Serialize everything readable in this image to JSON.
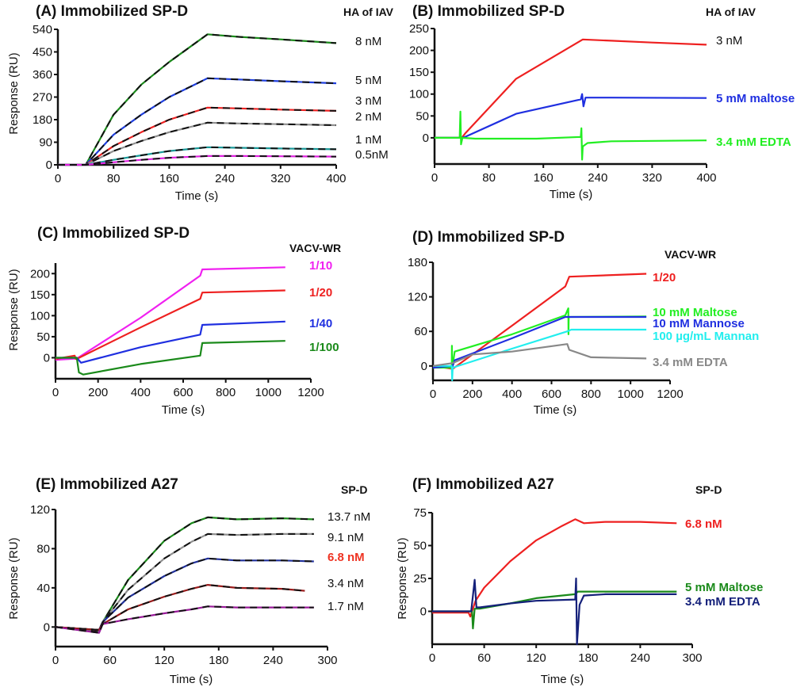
{
  "chart_data": [
    {
      "type": "line",
      "panel": "A",
      "title": "(A) Immobilized SP-D",
      "group_label": "HA of IAV",
      "xlabel": "Time (s)",
      "ylabel": "Response (RU)",
      "xlim": [
        0,
        400
      ],
      "ylim": [
        0,
        540
      ],
      "xticks": [
        0,
        80,
        160,
        240,
        320,
        400
      ],
      "yticks": [
        0,
        90,
        180,
        270,
        360,
        450,
        540
      ],
      "fit_dashed": true,
      "series": [
        {
          "name": "8 nM",
          "color": "#1a8a1a",
          "bold": false,
          "label_color": "#111111",
          "x": [
            0,
            40,
            80,
            120,
            160,
            215,
            260,
            320,
            400
          ],
          "y": [
            0,
            0,
            200,
            320,
            410,
            520,
            510,
            500,
            485
          ]
        },
        {
          "name": "5 nM",
          "color": "#1f3fe0",
          "bold": false,
          "label_color": "#111111",
          "x": [
            0,
            40,
            80,
            120,
            160,
            215,
            260,
            320,
            400
          ],
          "y": [
            0,
            0,
            120,
            200,
            270,
            345,
            340,
            333,
            325
          ]
        },
        {
          "name": "3 nM",
          "color": "#ee2020",
          "bold": false,
          "label_color": "#111111",
          "x": [
            0,
            40,
            80,
            120,
            160,
            215,
            260,
            320,
            400
          ],
          "y": [
            0,
            0,
            75,
            130,
            180,
            228,
            225,
            220,
            215
          ]
        },
        {
          "name": "2 nM",
          "color": "#909090",
          "bold": false,
          "label_color": "#111111",
          "x": [
            0,
            40,
            80,
            120,
            160,
            215,
            260,
            320,
            400
          ],
          "y": [
            0,
            0,
            55,
            95,
            130,
            168,
            165,
            162,
            158
          ]
        },
        {
          "name": "1 nM",
          "color": "#1a9a9a",
          "bold": false,
          "label_color": "#111111",
          "x": [
            0,
            40,
            80,
            120,
            160,
            215,
            260,
            320,
            400
          ],
          "y": [
            0,
            0,
            20,
            38,
            55,
            70,
            68,
            65,
            62
          ]
        },
        {
          "name": "0.5nM",
          "color": "#e020e0",
          "bold": false,
          "label_color": "#111111",
          "x": [
            0,
            40,
            80,
            120,
            160,
            215,
            260,
            320,
            400
          ],
          "y": [
            0,
            0,
            10,
            20,
            28,
            35,
            35,
            34,
            33
          ]
        }
      ]
    },
    {
      "type": "line",
      "panel": "B",
      "title": "(B) Immobilized SP-D",
      "group_label": "HA of IAV",
      "xlabel": "Time (s)",
      "ylabel": "",
      "xlim": [
        0,
        400
      ],
      "ylim": [
        -60,
        250
      ],
      "xticks": [
        0,
        80,
        160,
        240,
        320,
        400
      ],
      "yticks": [
        0,
        50,
        100,
        150,
        200,
        250
      ],
      "fit_dashed": false,
      "series": [
        {
          "name": "3 nM",
          "color": "#ee2020",
          "bold": false,
          "label_color": "#111111",
          "x": [
            0,
            40,
            45,
            120,
            218,
            260,
            320,
            400
          ],
          "y": [
            0,
            0,
            10,
            135,
            225,
            222,
            218,
            213
          ]
        },
        {
          "name": "5 mM maltose",
          "color": "#1f2fe0",
          "bold": true,
          "label_color": "#1f2fe0",
          "x": [
            0,
            40,
            45,
            120,
            215,
            217,
            219,
            222,
            260,
            400
          ],
          "y": [
            0,
            0,
            2,
            55,
            88,
            100,
            72,
            92,
            92,
            91
          ]
        },
        {
          "name": "3.4 mM EDTA",
          "color": "#22ee22",
          "bold": true,
          "label_color": "#22ee22",
          "x": [
            0,
            37,
            38,
            39,
            41,
            60,
            150,
            215,
            216,
            217,
            218,
            225,
            260,
            400
          ],
          "y": [
            0,
            0,
            60,
            -15,
            0,
            -2,
            -2,
            2,
            22,
            -50,
            -20,
            -12,
            -8,
            -6
          ]
        }
      ]
    },
    {
      "type": "line",
      "panel": "C",
      "title": "(C) Immobilized SP-D",
      "group_label": "VACV-WR",
      "xlabel": "Time (s)",
      "ylabel": "Response (RU)",
      "xlim": [
        0,
        1200
      ],
      "ylim": [
        -50,
        225
      ],
      "xticks": [
        0,
        200,
        400,
        600,
        800,
        1000,
        1200
      ],
      "yticks": [
        0,
        50,
        100,
        150,
        200
      ],
      "fit_dashed": false,
      "series": [
        {
          "name": "1/10",
          "color": "#f020f0",
          "bold": true,
          "label_color": "#f020f0",
          "x": [
            0,
            100,
            400,
            680,
            690,
            1080
          ],
          "y": [
            -5,
            -2,
            95,
            195,
            210,
            215
          ]
        },
        {
          "name": "1/20",
          "color": "#ee2020",
          "bold": true,
          "label_color": "#ee2020",
          "x": [
            0,
            90,
            95,
            100,
            400,
            680,
            690,
            1080
          ],
          "y": [
            -3,
            5,
            -3,
            -3,
            72,
            140,
            155,
            160
          ]
        },
        {
          "name": "1/40",
          "color": "#1f2fe0",
          "bold": true,
          "label_color": "#1f2fe0",
          "x": [
            0,
            100,
            120,
            400,
            680,
            690,
            1080
          ],
          "y": [
            0,
            0,
            -12,
            25,
            55,
            78,
            86
          ]
        },
        {
          "name": "1/100",
          "color": "#1a8a1a",
          "bold": true,
          "label_color": "#1a8a1a",
          "x": [
            0,
            100,
            110,
            130,
            400,
            680,
            690,
            1080
          ],
          "y": [
            0,
            0,
            -35,
            -40,
            -15,
            5,
            35,
            40
          ]
        }
      ]
    },
    {
      "type": "line",
      "panel": "D",
      "title": "(D) Immobilized SP-D",
      "group_label": "VACV-WR",
      "xlabel": "Time (s)",
      "ylabel": "",
      "xlim": [
        0,
        1200
      ],
      "ylim": [
        -25,
        180
      ],
      "xticks": [
        0,
        200,
        400,
        600,
        800,
        1000,
        1200
      ],
      "yticks": [
        0,
        60,
        120,
        180
      ],
      "fit_dashed": false,
      "series": [
        {
          "name": "1/20",
          "color": "#ee2020",
          "bold": true,
          "label_color": "#ee2020",
          "x": [
            0,
            100,
            400,
            670,
            690,
            1080
          ],
          "y": [
            0,
            -5,
            70,
            138,
            155,
            160
          ]
        },
        {
          "name": "10 mM Maltose",
          "color": "#22ee22",
          "bold": true,
          "label_color": "#22ee22",
          "x": [
            0,
            95,
            96,
            97,
            110,
            400,
            670,
            685,
            686,
            687,
            690,
            1080
          ],
          "y": [
            -3,
            -3,
            35,
            -5,
            25,
            55,
            88,
            100,
            55,
            85,
            85,
            86
          ]
        },
        {
          "name": "10 mM Mannose",
          "color": "#1f2fe0",
          "bold": true,
          "label_color": "#1f2fe0",
          "x": [
            0,
            100,
            110,
            400,
            670,
            690,
            1080
          ],
          "y": [
            -3,
            0,
            10,
            48,
            85,
            85,
            85
          ]
        },
        {
          "name": "100 µg/mL Mannan",
          "color": "#22eeee",
          "bold": true,
          "label_color": "#22eeee",
          "x": [
            0,
            95,
            97,
            100,
            400,
            680,
            700,
            1080
          ],
          "y": [
            0,
            0,
            -25,
            -3,
            30,
            60,
            63,
            63
          ]
        },
        {
          "name": "3.4 mM EDTA",
          "color": "#888888",
          "bold": true,
          "label_color": "#888888",
          "x": [
            0,
            100,
            200,
            400,
            680,
            690,
            800,
            1080
          ],
          "y": [
            0,
            5,
            20,
            25,
            38,
            28,
            15,
            13
          ]
        }
      ]
    },
    {
      "type": "line",
      "panel": "E",
      "title": "(E) Immobilized A27",
      "group_label": "SP-D",
      "xlabel": "Time (s)",
      "ylabel": "Response (RU)",
      "xlim": [
        0,
        300
      ],
      "ylim": [
        -20,
        120
      ],
      "xticks": [
        0,
        60,
        120,
        180,
        240,
        300
      ],
      "yticks": [
        0,
        40,
        80,
        120
      ],
      "fit_dashed": true,
      "series": [
        {
          "name": "13.7 nM",
          "color": "#1a8a1a",
          "bold": false,
          "label_color": "#111111",
          "x": [
            0,
            48,
            52,
            80,
            120,
            150,
            168,
            200,
            250,
            285
          ],
          "y": [
            0,
            -3,
            5,
            48,
            88,
            106,
            112,
            110,
            111,
            110
          ]
        },
        {
          "name": "9.1 nM",
          "color": "#909090",
          "bold": false,
          "label_color": "#111111",
          "x": [
            0,
            48,
            52,
            80,
            120,
            150,
            168,
            200,
            250,
            285
          ],
          "y": [
            0,
            -5,
            5,
            38,
            70,
            87,
            95,
            94,
            95,
            95
          ]
        },
        {
          "name": "6.8 nM",
          "color": "#1f2f9a",
          "bold": false,
          "label_color": "#ee3322",
          "label_bold": true,
          "x": [
            0,
            48,
            52,
            80,
            120,
            150,
            168,
            200,
            250,
            285
          ],
          "y": [
            0,
            -3,
            5,
            30,
            52,
            65,
            70,
            68,
            68,
            67
          ]
        },
        {
          "name": "3.4 nM",
          "color": "#991a1a",
          "bold": false,
          "label_color": "#111111",
          "x": [
            0,
            48,
            52,
            80,
            120,
            150,
            168,
            200,
            250,
            275
          ],
          "y": [
            0,
            -3,
            3,
            18,
            31,
            39,
            43,
            40,
            39,
            37
          ]
        },
        {
          "name": "1.7 nM",
          "color": "#991a99",
          "bold": false,
          "label_color": "#111111",
          "x": [
            0,
            48,
            52,
            80,
            120,
            150,
            168,
            200,
            250,
            285
          ],
          "y": [
            0,
            -6,
            3,
            8,
            14,
            18,
            21,
            20,
            20,
            20
          ]
        }
      ]
    },
    {
      "type": "line",
      "panel": "F",
      "title": "(F) Immobilized A27",
      "group_label": "SP-D",
      "xlabel": "Time (s)",
      "ylabel": "Response (RU)",
      "xlim": [
        0,
        300
      ],
      "ylim": [
        -25,
        75
      ],
      "xticks": [
        0,
        60,
        120,
        180,
        240,
        300
      ],
      "yticks": [
        0,
        25,
        50,
        75
      ],
      "fit_dashed": false,
      "series": [
        {
          "name": "6.8 nM",
          "color": "#ee2020",
          "bold": true,
          "label_color": "#ee2020",
          "x": [
            0,
            42,
            44,
            46,
            50,
            60,
            90,
            120,
            150,
            165,
            175,
            200,
            240,
            282
          ],
          "y": [
            -1,
            -1,
            -4,
            0,
            8,
            18,
            38,
            54,
            65,
            70,
            67,
            68,
            68,
            67
          ]
        },
        {
          "name": "5 mM Maltose",
          "color": "#1a8a1a",
          "bold": true,
          "label_color": "#1a8a1a",
          "x": [
            0,
            46,
            47,
            49,
            55,
            90,
            120,
            165,
            168,
            200,
            282
          ],
          "y": [
            0,
            0,
            -13,
            2,
            2,
            6,
            10,
            13,
            15,
            15,
            15
          ]
        },
        {
          "name": "3.4 mM EDTA",
          "color": "#14207a",
          "bold": true,
          "label_color": "#14207a",
          "x": [
            0,
            45,
            47,
            49,
            51,
            55,
            90,
            120,
            165,
            166,
            167,
            170,
            175,
            200,
            282
          ],
          "y": [
            0,
            0,
            12,
            24,
            3,
            3,
            6,
            8,
            9,
            25,
            -25,
            5,
            12,
            13,
            13
          ]
        }
      ]
    }
  ]
}
